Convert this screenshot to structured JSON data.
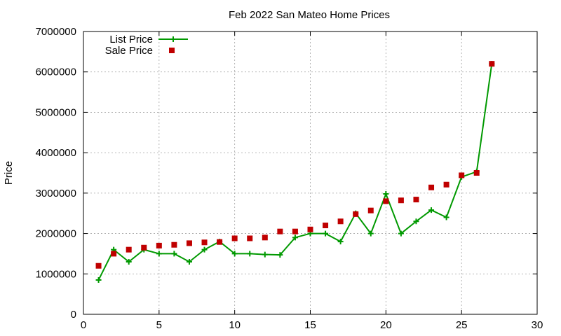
{
  "chart_data": {
    "type": "line",
    "title": "Feb 2022 San Mateo Home Prices",
    "xlabel": "",
    "ylabel": "Price",
    "xlim": [
      0,
      30
    ],
    "ylim": [
      0,
      7000000
    ],
    "xticks": [
      0,
      5,
      10,
      15,
      20,
      25,
      30
    ],
    "yticks": [
      0,
      1000000,
      2000000,
      3000000,
      4000000,
      5000000,
      6000000,
      7000000
    ],
    "grid": true,
    "legend_position": "top-left",
    "series": [
      {
        "name": "List Price",
        "style": "line-plus",
        "color": "#009900",
        "x": [
          1,
          2,
          3,
          4,
          5,
          6,
          7,
          8,
          9,
          10,
          11,
          12,
          13,
          14,
          15,
          16,
          17,
          18,
          19,
          20,
          21,
          22,
          23,
          24,
          25,
          26,
          27
        ],
        "values": [
          850000,
          1600000,
          1300000,
          1600000,
          1500000,
          1500000,
          1300000,
          1600000,
          1800000,
          1500000,
          1500000,
          1480000,
          1470000,
          1900000,
          2000000,
          2000000,
          1800000,
          2500000,
          2000000,
          2980000,
          2000000,
          2300000,
          2580000,
          2400000,
          3400000,
          3530000,
          6200000
        ]
      },
      {
        "name": "Sale Price",
        "style": "square",
        "color": "#c00000",
        "x": [
          1,
          2,
          3,
          4,
          5,
          6,
          7,
          8,
          9,
          10,
          11,
          12,
          13,
          14,
          15,
          16,
          17,
          18,
          19,
          20,
          21,
          22,
          23,
          24,
          25,
          26,
          27
        ],
        "values": [
          1200000,
          1500000,
          1600000,
          1650000,
          1700000,
          1720000,
          1760000,
          1780000,
          1790000,
          1880000,
          1880000,
          1900000,
          2050000,
          2050000,
          2100000,
          2200000,
          2300000,
          2480000,
          2570000,
          2800000,
          2820000,
          2840000,
          3140000,
          3210000,
          3440000,
          3500000,
          6200000
        ]
      }
    ]
  }
}
